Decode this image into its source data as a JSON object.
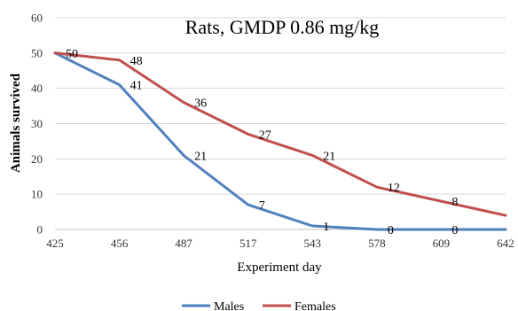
{
  "chart_data": {
    "type": "line",
    "title": "Rats, GMDP 0.86 mg/kg",
    "xlabel": "Experiment day",
    "ylabel": "Animals survived",
    "categories": [
      "425",
      "456",
      "487",
      "517",
      "543",
      "578",
      "609",
      "642"
    ],
    "ylim": [
      0,
      60
    ],
    "yticks": [
      0,
      10,
      20,
      30,
      40,
      50,
      60
    ],
    "grid": true,
    "legend": "bottom",
    "series": [
      {
        "name": "Males",
        "color": "#4F81BD",
        "values": [
          50,
          41,
          21,
          7,
          1,
          0,
          0,
          0
        ],
        "labels": [
          "50",
          "41",
          "21",
          "7",
          "1",
          "0",
          "0",
          null
        ]
      },
      {
        "name": "Females",
        "color": "#C0504D",
        "values": [
          50,
          48,
          36,
          27,
          21,
          12,
          8,
          4
        ],
        "labels": [
          null,
          "48",
          "36",
          "27",
          "21",
          "12",
          "8",
          null
        ]
      }
    ]
  }
}
